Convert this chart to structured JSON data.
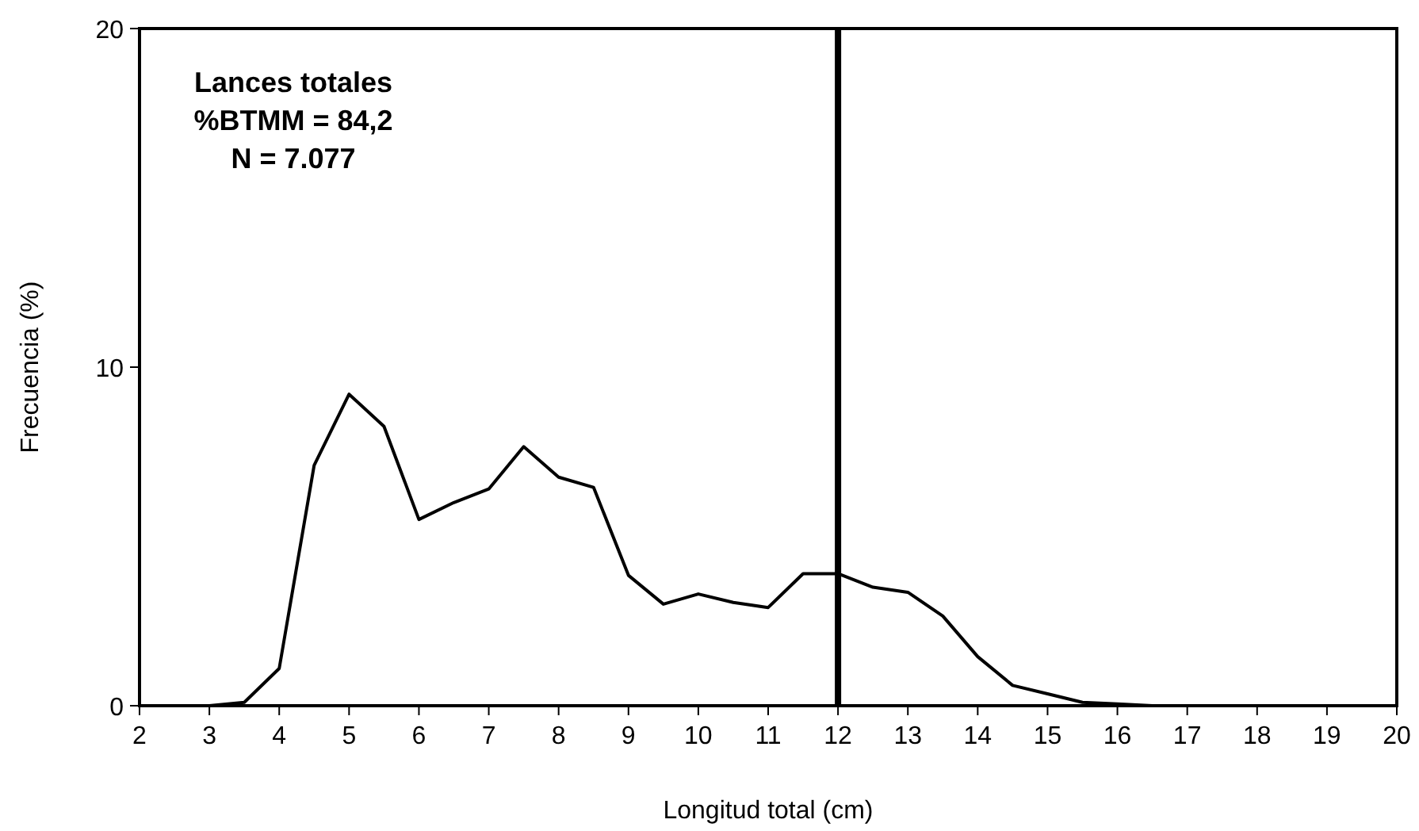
{
  "chart_data": {
    "type": "line",
    "xlabel": "Longitud total (cm)",
    "ylabel": "Frecuencia (%)",
    "annotations": [
      "Lances totales",
      "%BTMM = 84,2",
      "N = 7.077"
    ],
    "x": [
      2,
      2.5,
      3,
      3.5,
      4,
      4.5,
      5,
      5.5,
      6,
      6.5,
      7,
      7.5,
      8,
      8.5,
      9,
      9.5,
      10,
      10.5,
      11,
      11.5,
      12,
      12.5,
      13,
      13.5,
      14,
      14.5,
      15,
      15.5,
      16,
      16.5,
      17,
      17.5,
      18,
      18.5,
      19,
      19.5,
      20
    ],
    "series": [
      {
        "color": "#000000",
        "values": [
          0,
          0,
          0,
          0.1,
          1.1,
          7.1,
          9.2,
          8.25,
          5.5,
          6.0,
          6.4,
          7.65,
          6.75,
          6.45,
          3.85,
          3.0,
          3.3,
          3.05,
          2.9,
          3.9,
          3.9,
          3.5,
          3.35,
          2.65,
          1.45,
          0.6,
          0.35,
          0.1,
          0.05,
          0,
          0,
          0,
          0,
          0,
          0,
          0,
          0
        ]
      }
    ],
    "xlim": [
      2,
      20
    ],
    "xticks": [
      2,
      3,
      4,
      5,
      6,
      7,
      8,
      9,
      10,
      11,
      12,
      13,
      14,
      15,
      16,
      17,
      18,
      19,
      20
    ],
    "ylim": [
      0,
      20
    ],
    "yticks": [
      0,
      10,
      20
    ],
    "ref_lines": [
      {
        "axis": "x",
        "value": 12,
        "color": "#000000"
      }
    ],
    "grid": false,
    "marker": "none",
    "line_style": "solid"
  }
}
